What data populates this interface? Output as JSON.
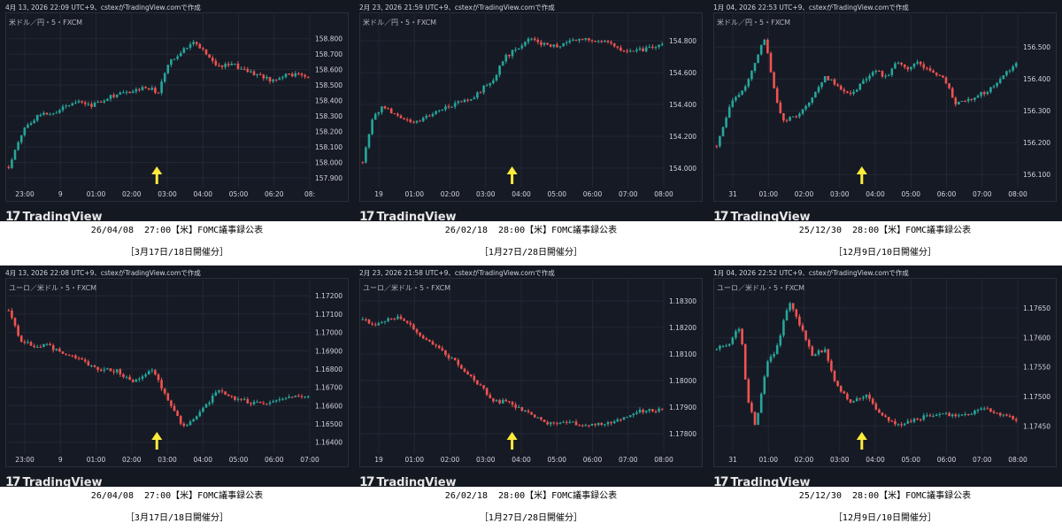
{
  "colors": {
    "up": "#26a69a",
    "down": "#ef5350",
    "arrow": "#ffeb3b",
    "grid": "#232733"
  },
  "brand": "TradingView",
  "panels": [
    {
      "timestamp": "4月 13, 2026 22:09 UTC+9、cstexがTradingView.comで作成",
      "symbol": "米ドル／円・5・FXCM",
      "event": "26/04/08  27:00【米】FOMC議事録公表",
      "meeting": "［3月17日/18日開催分］"
    },
    {
      "timestamp": "2月 23, 2026 21:59 UTC+9、cstexがTradingView.comで作成",
      "symbol": "米ドル／円・5・FXCM",
      "event": "26/02/18  28:00【米】FOMC議事録公表",
      "meeting": "［1月27日/28日開催分］"
    },
    {
      "timestamp": "1月 04, 2026 22:53 UTC+9、cstexがTradingView.comで作成",
      "symbol": "米ドル／円・5・FXCM",
      "event": "25/12/30  28:00【米】FOMC議事録公表",
      "meeting": "［12月9日/10日開催分］"
    },
    {
      "timestamp": "4月 13, 2026 22:08 UTC+9、cstexがTradingView.comで作成",
      "symbol": "ユーロ／米ドル・5・FXCM",
      "event": "26/04/08  27:00【米】FOMC議事録公表",
      "meeting": "［3月17日/18日開催分］"
    },
    {
      "timestamp": "2月 23, 2026 21:58 UTC+9、cstexがTradingView.comで作成",
      "symbol": "ユーロ／米ドル・5・FXCM",
      "event": "26/02/18  28:00【米】FOMC議事録公表",
      "meeting": "［1月27日/28日開催分］"
    },
    {
      "timestamp": "1月 04, 2026 22:52 UTC+9、cstexがTradingView.comで作成",
      "symbol": "ユーロ／米ドル・5・FXCM",
      "event": "25/12/30  28:00【米】FOMC議事録公表",
      "meeting": "［12月9日/10日開催分］"
    }
  ],
  "chart_data": [
    {
      "type": "candlestick",
      "y_ticks": [
        "158.800",
        "158.700",
        "158.600",
        "158.500",
        "158.400",
        "158.300",
        "158.200",
        "158.100",
        "158.000",
        "157.900"
      ],
      "ylim": [
        157.86,
        158.89
      ],
      "x_ticks": [
        "23:00",
        "9",
        "01:00",
        "02:00",
        "03:00",
        "04:00",
        "05:00",
        "06:20",
        "08:"
      ],
      "close_path": [
        [
          0,
          157.97
        ],
        [
          0.05,
          158.22
        ],
        [
          0.1,
          158.31
        ],
        [
          0.16,
          158.33
        ],
        [
          0.22,
          158.4
        ],
        [
          0.28,
          158.37
        ],
        [
          0.34,
          158.43
        ],
        [
          0.4,
          158.45
        ],
        [
          0.46,
          158.49
        ],
        [
          0.5,
          158.45
        ],
        [
          0.53,
          158.63
        ],
        [
          0.58,
          158.73
        ],
        [
          0.62,
          158.79
        ],
        [
          0.66,
          158.7
        ],
        [
          0.7,
          158.62
        ],
        [
          0.75,
          158.63
        ],
        [
          0.8,
          158.59
        ],
        [
          0.84,
          158.56
        ],
        [
          0.88,
          158.53
        ],
        [
          0.92,
          158.57
        ],
        [
          1,
          158.56
        ]
      ],
      "event_x": 0.489
    },
    {
      "type": "candlestick",
      "y_ticks": [
        "154.800",
        "154.600",
        "154.400",
        "154.200",
        "154.000"
      ],
      "ylim": [
        153.9,
        154.9
      ],
      "x_ticks": [
        "19",
        "01:00",
        "02:00",
        "03:00",
        "04:00",
        "05:00",
        "06:00",
        "07:00",
        "08:00"
      ],
      "close_path": [
        [
          0,
          154.04
        ],
        [
          0.03,
          154.3
        ],
        [
          0.07,
          154.39
        ],
        [
          0.12,
          154.32
        ],
        [
          0.18,
          154.29
        ],
        [
          0.25,
          154.36
        ],
        [
          0.32,
          154.41
        ],
        [
          0.38,
          154.46
        ],
        [
          0.44,
          154.57
        ],
        [
          0.47,
          154.69
        ],
        [
          0.5,
          154.73
        ],
        [
          0.52,
          154.75
        ],
        [
          0.55,
          154.81
        ],
        [
          0.6,
          154.78
        ],
        [
          0.65,
          154.77
        ],
        [
          0.7,
          154.8
        ],
        [
          0.75,
          154.81
        ],
        [
          0.8,
          154.8
        ],
        [
          0.84,
          154.76
        ],
        [
          0.9,
          154.73
        ],
        [
          0.95,
          154.75
        ],
        [
          1,
          154.77
        ]
      ],
      "event_x": 0.493
    },
    {
      "type": "candlestick",
      "y_ticks": [
        "156.500",
        "156.400",
        "156.300",
        "156.200",
        "156.100"
      ],
      "ylim": [
        156.07,
        156.57
      ],
      "x_ticks": [
        "31",
        "01:00",
        "02:00",
        "03:00",
        "04:00",
        "05:00",
        "06:00",
        "07:00",
        "08:00"
      ],
      "close_path": [
        [
          0,
          156.19
        ],
        [
          0.05,
          156.33
        ],
        [
          0.1,
          156.38
        ],
        [
          0.14,
          156.48
        ],
        [
          0.16,
          156.53
        ],
        [
          0.19,
          156.37
        ],
        [
          0.22,
          156.27
        ],
        [
          0.28,
          156.29
        ],
        [
          0.32,
          156.34
        ],
        [
          0.36,
          156.41
        ],
        [
          0.4,
          156.38
        ],
        [
          0.44,
          156.35
        ],
        [
          0.49,
          156.39
        ],
        [
          0.53,
          156.43
        ],
        [
          0.57,
          156.4
        ],
        [
          0.6,
          156.46
        ],
        [
          0.63,
          156.43
        ],
        [
          0.67,
          156.45
        ],
        [
          0.72,
          156.42
        ],
        [
          0.76,
          156.4
        ],
        [
          0.8,
          156.32
        ],
        [
          0.85,
          156.34
        ],
        [
          0.9,
          156.36
        ],
        [
          0.95,
          156.4
        ],
        [
          1,
          156.45
        ]
      ],
      "event_x": 0.479
    },
    {
      "type": "candlestick",
      "y_ticks": [
        "1.17200",
        "1.17100",
        "1.17000",
        "1.16900",
        "1.16800",
        "1.16700",
        "1.16600",
        "1.16500",
        "1.16400"
      ],
      "ylim": [
        1.1636,
        1.1723
      ],
      "x_ticks": [
        "23:00",
        "9",
        "01:00",
        "02:00",
        "03:00",
        "04:00",
        "05:00",
        "06:00",
        "07:00"
      ],
      "close_path": [
        [
          0,
          1.1712
        ],
        [
          0.04,
          1.1695
        ],
        [
          0.08,
          1.1693
        ],
        [
          0.13,
          1.1693
        ],
        [
          0.18,
          1.1688
        ],
        [
          0.24,
          1.1685
        ],
        [
          0.3,
          1.168
        ],
        [
          0.36,
          1.1679
        ],
        [
          0.42,
          1.1673
        ],
        [
          0.48,
          1.1679
        ],
        [
          0.52,
          1.1667
        ],
        [
          0.56,
          1.1655
        ],
        [
          0.58,
          1.1648
        ],
        [
          0.62,
          1.1652
        ],
        [
          0.66,
          1.1661
        ],
        [
          0.7,
          1.1668
        ],
        [
          0.74,
          1.1665
        ],
        [
          0.8,
          1.1662
        ],
        [
          0.86,
          1.1661
        ],
        [
          0.92,
          1.1664
        ],
        [
          1,
          1.1666
        ]
      ],
      "event_x": 0.489
    },
    {
      "type": "candlestick",
      "y_ticks": [
        "1.18300",
        "1.18200",
        "1.18100",
        "1.18000",
        "1.17900",
        "1.17800"
      ],
      "ylim": [
        1.1774,
        1.1834
      ],
      "x_ticks": [
        "19",
        "01:00",
        "02:00",
        "03:00",
        "04:00",
        "05:00",
        "06:00",
        "07:00",
        "08:00"
      ],
      "close_path": [
        [
          0,
          1.1823
        ],
        [
          0.04,
          1.1821
        ],
        [
          0.08,
          1.1823
        ],
        [
          0.13,
          1.1824
        ],
        [
          0.18,
          1.1818
        ],
        [
          0.24,
          1.1813
        ],
        [
          0.3,
          1.1808
        ],
        [
          0.36,
          1.1802
        ],
        [
          0.4,
          1.1797
        ],
        [
          0.44,
          1.1792
        ],
        [
          0.48,
          1.1792
        ],
        [
          0.52,
          1.179
        ],
        [
          0.56,
          1.1787
        ],
        [
          0.62,
          1.1784
        ],
        [
          0.68,
          1.1785
        ],
        [
          0.74,
          1.1783
        ],
        [
          0.8,
          1.1784
        ],
        [
          0.86,
          1.1785
        ],
        [
          0.9,
          1.1788
        ],
        [
          0.95,
          1.1789
        ],
        [
          1,
          1.1789
        ]
      ],
      "event_x": 0.493
    },
    {
      "type": "candlestick",
      "y_ticks": [
        "1.17650",
        "1.17600",
        "1.17550",
        "1.17500",
        "1.17450"
      ],
      "ylim": [
        1.1741,
        1.1768
      ],
      "x_ticks": [
        "31",
        "01:00",
        "02:00",
        "03:00",
        "04:00",
        "05:00",
        "06:00",
        "07:00",
        "08:00"
      ],
      "close_path": [
        [
          0,
          1.1758
        ],
        [
          0.04,
          1.1759
        ],
        [
          0.08,
          1.1762
        ],
        [
          0.1,
          1.175
        ],
        [
          0.13,
          1.1745
        ],
        [
          0.17,
          1.1756
        ],
        [
          0.2,
          1.1758
        ],
        [
          0.24,
          1.1766
        ],
        [
          0.28,
          1.1762
        ],
        [
          0.32,
          1.1757
        ],
        [
          0.36,
          1.1758
        ],
        [
          0.4,
          1.1752
        ],
        [
          0.45,
          1.1749
        ],
        [
          0.5,
          1.175
        ],
        [
          0.55,
          1.1747
        ],
        [
          0.6,
          1.1745
        ],
        [
          0.66,
          1.1746
        ],
        [
          0.72,
          1.1747
        ],
        [
          0.78,
          1.1747
        ],
        [
          0.84,
          1.1747
        ],
        [
          0.9,
          1.1748
        ],
        [
          0.95,
          1.1747
        ],
        [
          1,
          1.1746
        ]
      ],
      "event_x": 0.479
    }
  ]
}
